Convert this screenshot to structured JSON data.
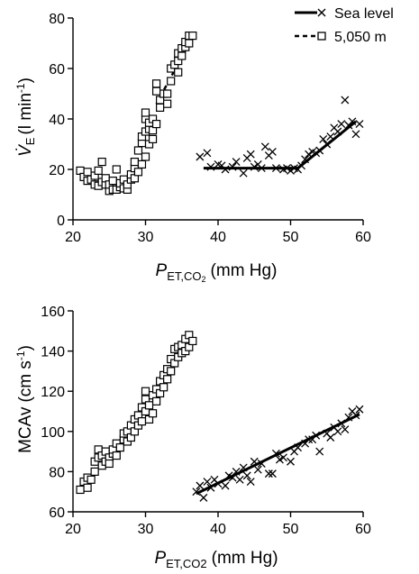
{
  "legend": {
    "items": [
      {
        "label": "Sea level",
        "line": "solid",
        "marker": "x"
      },
      {
        "label": "5,050 m",
        "line": "dashed",
        "marker": "square"
      }
    ]
  },
  "chart_data": [
    {
      "type": "scatter",
      "ylabel_main": "V̇",
      "ylabel_sub": "E",
      "ylabel_unit": "(l min",
      "ylabel_exp": "-1",
      "ylabel_close": ")",
      "xlabel_main": "P",
      "xlabel_sub": "ET,CO",
      "xlabel_sub2": "2",
      "xlabel_unit": "(mm Hg)",
      "xlim": [
        20,
        60
      ],
      "ylim": [
        0,
        80
      ],
      "x_ticks": [
        20,
        30,
        40,
        50,
        60
      ],
      "y_ticks": [
        0,
        20,
        40,
        60,
        80
      ],
      "grid": false,
      "legend_position": "top-right",
      "series": [
        {
          "name": "5,050 m",
          "marker": "square",
          "points": [
            [
              21.0,
              19.5
            ],
            [
              21.5,
              17.0
            ],
            [
              22.0,
              15.5
            ],
            [
              22.0,
              19.0
            ],
            [
              22.5,
              16.0
            ],
            [
              23.0,
              14.0
            ],
            [
              23.0,
              17.5
            ],
            [
              23.5,
              13.5
            ],
            [
              23.5,
              19.5
            ],
            [
              24.0,
              15.0
            ],
            [
              24.0,
              23.0
            ],
            [
              24.5,
              14.0
            ],
            [
              24.5,
              16.5
            ],
            [
              25.0,
              11.5
            ],
            [
              25.0,
              14.0
            ],
            [
              25.5,
              12.0
            ],
            [
              25.5,
              15.5
            ],
            [
              26.0,
              12.0
            ],
            [
              26.0,
              20.0
            ],
            [
              26.5,
              13.0
            ],
            [
              26.5,
              14.5
            ],
            [
              27.0,
              12.5
            ],
            [
              27.0,
              16.0
            ],
            [
              27.5,
              12.0
            ],
            [
              27.5,
              14.0
            ],
            [
              28.0,
              16.0
            ],
            [
              28.0,
              18.0
            ],
            [
              28.5,
              16.5
            ],
            [
              28.5,
              20.5
            ],
            [
              28.5,
              23.0
            ],
            [
              29.0,
              19.0
            ],
            [
              29.0,
              27.5
            ],
            [
              29.5,
              22.0
            ],
            [
              29.5,
              30.5
            ],
            [
              29.5,
              33.0
            ],
            [
              30.0,
              25.0
            ],
            [
              30.0,
              35.0
            ],
            [
              30.0,
              40.0
            ],
            [
              30.0,
              42.5
            ],
            [
              30.5,
              30.0
            ],
            [
              30.5,
              36.0
            ],
            [
              30.5,
              38.5
            ],
            [
              31.0,
              32.0
            ],
            [
              31.0,
              35.5
            ],
            [
              31.0,
              40.0
            ],
            [
              31.5,
              38.0
            ],
            [
              31.5,
              51.0
            ],
            [
              31.5,
              54.0
            ],
            [
              32.0,
              44.5
            ],
            [
              32.0,
              47.5
            ],
            [
              32.5,
              50.0
            ],
            [
              33.0,
              46.0
            ],
            [
              33.0,
              50.0
            ],
            [
              33.5,
              55.0
            ],
            [
              33.5,
              60.0
            ],
            [
              34.0,
              61.5
            ],
            [
              34.5,
              58.5
            ],
            [
              34.5,
              63.0
            ],
            [
              34.5,
              66.0
            ],
            [
              35.0,
              65.0
            ],
            [
              35.0,
              68.0
            ],
            [
              35.5,
              68.5
            ],
            [
              35.5,
              70.5
            ],
            [
              36.0,
              70.0
            ],
            [
              36.0,
              73.0
            ],
            [
              36.5,
              73.0
            ]
          ],
          "fit": [
            [
              31.5,
              46.0
            ],
            [
              36.5,
              72.5
            ]
          ]
        },
        {
          "name": "Sea level",
          "marker": "x",
          "points": [
            [
              37.5,
              25.0
            ],
            [
              38.5,
              26.5
            ],
            [
              39.0,
              21.0
            ],
            [
              40.0,
              22.0
            ],
            [
              40.5,
              21.5
            ],
            [
              41.0,
              20.0
            ],
            [
              42.0,
              21.0
            ],
            [
              42.5,
              23.0
            ],
            [
              43.5,
              18.5
            ],
            [
              44.0,
              24.5
            ],
            [
              44.5,
              26.0
            ],
            [
              45.0,
              21.0
            ],
            [
              45.5,
              22.0
            ],
            [
              46.0,
              20.5
            ],
            [
              46.5,
              29.0
            ],
            [
              47.0,
              25.5
            ],
            [
              47.5,
              27.0
            ],
            [
              48.0,
              20.5
            ],
            [
              49.0,
              20.0
            ],
            [
              49.5,
              20.5
            ],
            [
              50.0,
              19.5
            ],
            [
              50.5,
              20.5
            ],
            [
              51.0,
              20.0
            ],
            [
              51.5,
              21.5
            ],
            [
              52.0,
              24.0
            ],
            [
              52.5,
              26.0
            ],
            [
              53.0,
              27.0
            ],
            [
              53.5,
              26.5
            ],
            [
              54.0,
              27.5
            ],
            [
              54.5,
              32.0
            ],
            [
              55.0,
              30.0
            ],
            [
              55.5,
              33.0
            ],
            [
              56.0,
              36.5
            ],
            [
              56.5,
              35.0
            ],
            [
              57.0,
              38.0
            ],
            [
              57.5,
              47.5
            ],
            [
              58.0,
              37.5
            ],
            [
              58.5,
              39.0
            ],
            [
              59.0,
              34.0
            ],
            [
              59.5,
              38.0
            ]
          ],
          "fit": [
            [
              38.0,
              20.5
            ],
            [
              51.0,
              20.5
            ],
            [
              59.0,
              39.0
            ]
          ]
        }
      ]
    },
    {
      "type": "scatter",
      "ylabel_main": "MCAv",
      "ylabel_unit": "(cm s",
      "ylabel_exp": "-1",
      "ylabel_close": ")",
      "xlabel_main": "P",
      "xlabel_sub": "ET,CO2",
      "xlabel_unit": "(mm Hg)",
      "xlim": [
        20,
        60
      ],
      "ylim": [
        60,
        160
      ],
      "x_ticks": [
        20,
        30,
        40,
        50,
        60
      ],
      "y_ticks": [
        60,
        80,
        100,
        120,
        140,
        160
      ],
      "grid": false,
      "series": [
        {
          "name": "5,050 m",
          "marker": "square",
          "points": [
            [
              21.0,
              71.0
            ],
            [
              21.5,
              75.0
            ],
            [
              22.0,
              77.0
            ],
            [
              22.0,
              72.0
            ],
            [
              22.5,
              76.0
            ],
            [
              23.0,
              80.0
            ],
            [
              23.0,
              85.0
            ],
            [
              23.5,
              87.0
            ],
            [
              23.5,
              91.0
            ],
            [
              24.0,
              83.0
            ],
            [
              24.0,
              88.0
            ],
            [
              24.5,
              85.0
            ],
            [
              24.5,
              90.0
            ],
            [
              25.0,
              87.0
            ],
            [
              25.0,
              84.0
            ],
            [
              25.5,
              89.0
            ],
            [
              25.5,
              91.0
            ],
            [
              26.0,
              88.0
            ],
            [
              26.0,
              94.0
            ],
            [
              26.5,
              92.0
            ],
            [
              27.0,
              96.0
            ],
            [
              27.0,
              99.0
            ],
            [
              27.5,
              100.0
            ],
            [
              27.5,
              95.0
            ],
            [
              28.0,
              97.0
            ],
            [
              28.0,
              103.0
            ],
            [
              28.5,
              100.0
            ],
            [
              28.5,
              106.0
            ],
            [
              29.0,
              108.0
            ],
            [
              29.0,
              103.0
            ],
            [
              29.5,
              105.0
            ],
            [
              29.5,
              112.0
            ],
            [
              30.0,
              110.0
            ],
            [
              30.0,
              116.0
            ],
            [
              30.0,
              120.0
            ],
            [
              30.5,
              106.0
            ],
            [
              30.5,
              113.0
            ],
            [
              31.0,
              118.0
            ],
            [
              31.0,
              109.0
            ],
            [
              31.5,
              115.0
            ],
            [
              31.5,
              121.0
            ],
            [
              32.0,
              119.0
            ],
            [
              32.0,
              125.0
            ],
            [
              32.5,
              122.0
            ],
            [
              32.5,
              128.0
            ],
            [
              33.0,
              126.0
            ],
            [
              33.0,
              131.0
            ],
            [
              33.5,
              130.0
            ],
            [
              33.5,
              136.0
            ],
            [
              34.0,
              141.0
            ],
            [
              34.0,
              134.0
            ],
            [
              34.5,
              137.0
            ],
            [
              34.5,
              142.0
            ],
            [
              35.0,
              139.0
            ],
            [
              35.0,
              143.0
            ],
            [
              35.5,
              140.0
            ],
            [
              35.5,
              146.0
            ],
            [
              36.0,
              142.0
            ],
            [
              36.0,
              148.0
            ],
            [
              36.5,
              145.0
            ]
          ],
          "fit": [
            [
              25.0,
              88.0
            ],
            [
              36.0,
              145.0
            ]
          ]
        },
        {
          "name": "Sea level",
          "marker": "x",
          "points": [
            [
              37.0,
              70.0
            ],
            [
              37.5,
              73.0
            ],
            [
              38.0,
              67.0
            ],
            [
              38.5,
              75.0
            ],
            [
              39.0,
              72.0
            ],
            [
              39.5,
              76.0
            ],
            [
              40.0,
              74.0
            ],
            [
              41.0,
              73.0
            ],
            [
              41.5,
              78.0
            ],
            [
              42.0,
              77.0
            ],
            [
              42.5,
              80.0
            ],
            [
              43.0,
              76.0
            ],
            [
              43.5,
              82.0
            ],
            [
              44.0,
              78.0
            ],
            [
              44.5,
              75.0
            ],
            [
              45.0,
              85.0
            ],
            [
              45.5,
              81.0
            ],
            [
              46.0,
              84.0
            ],
            [
              47.0,
              79.0
            ],
            [
              47.5,
              79.0
            ],
            [
              48.0,
              89.0
            ],
            [
              48.5,
              86.0
            ],
            [
              49.0,
              87.0
            ],
            [
              50.0,
              85.0
            ],
            [
              50.5,
              90.0
            ],
            [
              51.0,
              92.0
            ],
            [
              52.0,
              94.0
            ],
            [
              52.5,
              96.0
            ],
            [
              53.0,
              96.0
            ],
            [
              53.5,
              98.0
            ],
            [
              54.0,
              90.0
            ],
            [
              55.0,
              99.0
            ],
            [
              55.5,
              97.0
            ],
            [
              56.0,
              102.0
            ],
            [
              56.5,
              100.0
            ],
            [
              57.0,
              104.0
            ],
            [
              57.5,
              101.0
            ],
            [
              58.0,
              107.0
            ],
            [
              58.5,
              110.0
            ],
            [
              59.0,
              108.0
            ],
            [
              59.5,
              111.0
            ]
          ],
          "fit": [
            [
              37.0,
              69.0
            ],
            [
              59.5,
              108.5
            ]
          ]
        }
      ]
    }
  ]
}
